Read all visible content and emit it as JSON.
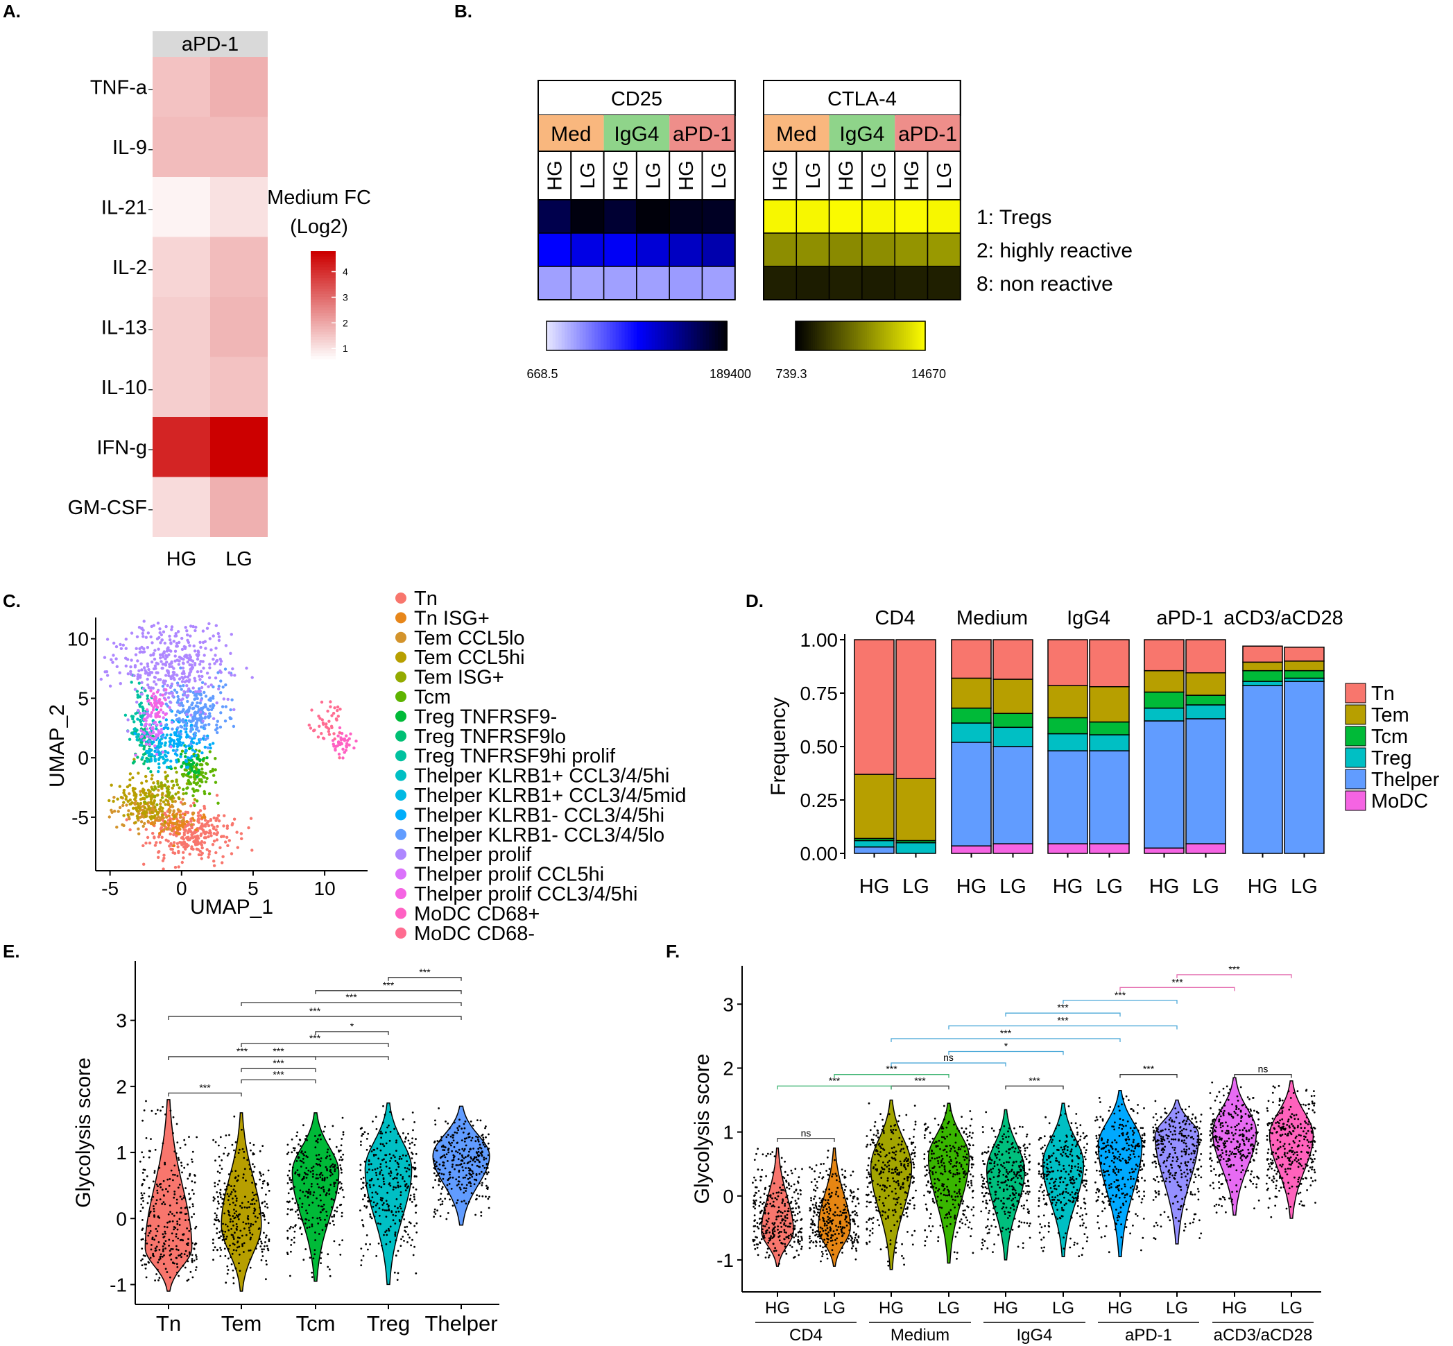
{
  "panel_labels": {
    "A": "A.",
    "B": "B.",
    "C": "C.",
    "D": "D.",
    "E": "E.",
    "F": "F."
  },
  "colors": {
    "Tn": "#F8766D",
    "Tem": "#B79F00",
    "Tcm": "#00BA38",
    "Treg": "#00BFC4",
    "Thelper": "#619CFF",
    "MoDC": "#F564E3",
    "sig_green": "#3CB371",
    "sig_blue": "#4AA8D8",
    "sig_pink": "#E36AAE",
    "heat_high": "#CC0000",
    "heat_low": "#FFFFFF",
    "strip": "#D9D9D9"
  },
  "chart_data": [
    {
      "id": "A",
      "type": "heatmap",
      "strip_label": "aPD-1",
      "rows": [
        "TNF-a",
        "IL-9",
        "IL-21",
        "IL-2",
        "IL-13",
        "IL-10",
        "IFN-g",
        "GM-CSF"
      ],
      "columns": [
        "HG",
        "LG"
      ],
      "values": [
        [
          1.6,
          1.9
        ],
        [
          1.7,
          1.7
        ],
        [
          0.8,
          1.1
        ],
        [
          1.3,
          1.7
        ],
        [
          1.4,
          1.8
        ],
        [
          1.4,
          1.6
        ],
        [
          4.2,
          4.8
        ],
        [
          1.2,
          1.9
        ]
      ],
      "legend_title": [
        "Medium FC",
        "(Log2)"
      ],
      "legend_ticks": [
        "4",
        "3",
        "2",
        "1"
      ],
      "legend_tick_values": [
        4,
        3,
        2,
        1
      ],
      "legend_range": [
        0.6,
        4.8
      ]
    },
    {
      "id": "B",
      "type": "heatmap",
      "groups": [
        {
          "marker": "CD25",
          "conditions": [
            "Med",
            "IgG4",
            "aPD-1"
          ],
          "columns": [
            "HG",
            "LG",
            "HG",
            "LG",
            "HG",
            "LG"
          ],
          "values": [
            [
              0.85,
              0.97,
              0.9,
              0.98,
              0.94,
              0.93
            ],
            [
              0.5,
              0.55,
              0.52,
              0.58,
              0.62,
              0.66
            ],
            [
              0.15,
              0.14,
              0.15,
              0.15,
              0.16,
              0.15
            ]
          ],
          "colorbar": [
            "668.5",
            "189400"
          ],
          "scale": "blue"
        },
        {
          "marker": "CTLA-4",
          "conditions": [
            "Med",
            "IgG4",
            "aPD-1"
          ],
          "columns": [
            "HG",
            "LG",
            "HG",
            "LG",
            "HG",
            "LG"
          ],
          "values": [
            [
              0.97,
              0.97,
              0.98,
              0.97,
              0.98,
              0.97
            ],
            [
              0.55,
              0.56,
              0.54,
              0.55,
              0.58,
              0.6
            ],
            [
              0.12,
              0.11,
              0.12,
              0.11,
              0.12,
              0.12
            ]
          ],
          "colorbar": [
            "739.3",
            "14670"
          ],
          "scale": "yellow"
        }
      ],
      "condition_colors": [
        "#F9B77E",
        "#8FD48A",
        "#EE8E8A"
      ],
      "row_labels": [
        "1: Tregs",
        "2: highly reactive",
        "8: non reactive"
      ]
    },
    {
      "id": "C",
      "type": "scatter",
      "xlabel": "UMAP_1",
      "ylabel": "UMAP_2",
      "xlim": [
        -6,
        13
      ],
      "ylim": [
        -9.5,
        11.5
      ],
      "xticks": [
        -5,
        0,
        5,
        10
      ],
      "yticks": [
        10,
        5,
        0,
        -5
      ],
      "clusters": [
        {
          "label": "Tn",
          "color": "#F8766D",
          "center": [
            0.5,
            -6.5
          ],
          "spread": [
            1.6,
            1.1
          ],
          "n": 300
        },
        {
          "label": "Tn ISG+",
          "color": "#E7861A",
          "center": [
            -0.5,
            -5.5
          ],
          "spread": [
            1.0,
            0.6
          ],
          "n": 60
        },
        {
          "label": "Tem CCL5lo",
          "color": "#D3932B",
          "center": [
            -2.0,
            -4.5
          ],
          "spread": [
            1.2,
            0.8
          ],
          "n": 120
        },
        {
          "label": "Tem CCL5hi",
          "color": "#B79F00",
          "center": [
            -2.3,
            -3.5
          ],
          "spread": [
            1.2,
            0.9
          ],
          "n": 140
        },
        {
          "label": "Tem ISG+",
          "color": "#93AA00",
          "center": [
            -1.0,
            -2.8
          ],
          "spread": [
            0.6,
            0.5
          ],
          "n": 40
        },
        {
          "label": "Tcm",
          "color": "#5EB300",
          "center": [
            1.0,
            -1.5
          ],
          "spread": [
            0.6,
            1.0
          ],
          "n": 100
        },
        {
          "label": "Treg TNFRSF9-",
          "color": "#00BA38",
          "center": [
            0.6,
            -0.5
          ],
          "spread": [
            0.5,
            0.7
          ],
          "n": 50
        },
        {
          "label": "Treg TNFRSF9lo",
          "color": "#00BF74",
          "center": [
            -2.6,
            1.0
          ],
          "spread": [
            0.4,
            1.0
          ],
          "n": 50
        },
        {
          "label": "Treg TNFRSF9hi prolif",
          "color": "#00C19F",
          "center": [
            -3.0,
            4.0
          ],
          "spread": [
            0.4,
            1.2
          ],
          "n": 50
        },
        {
          "label": "Thelper KLRB1+ CCL3/4/5hi",
          "color": "#00BFC4",
          "center": [
            -2.2,
            2.0
          ],
          "spread": [
            0.5,
            1.0
          ],
          "n": 50
        },
        {
          "label": "Thelper KLRB1+ CCL3/4/5mid",
          "color": "#00B9E3",
          "center": [
            -1.6,
            0.5
          ],
          "spread": [
            0.5,
            0.8
          ],
          "n": 50
        },
        {
          "label": "Thelper KLRB1- CCL3/4/5hi",
          "color": "#00ADFA",
          "center": [
            0.0,
            1.5
          ],
          "spread": [
            1.0,
            1.0
          ],
          "n": 120
        },
        {
          "label": "Thelper KLRB1- CCL3/4/5lo",
          "color": "#619CFF",
          "center": [
            1.0,
            4.0
          ],
          "spread": [
            1.1,
            1.4
          ],
          "n": 200
        },
        {
          "label": "Thelper prolif",
          "color": "#AE87FF",
          "center": [
            -0.5,
            8.0
          ],
          "spread": [
            2.0,
            1.8
          ],
          "n": 380
        },
        {
          "label": "Thelper prolif CCL5hi",
          "color": "#DB72FB",
          "center": [
            -2.0,
            2.5
          ],
          "spread": [
            0.5,
            0.9
          ],
          "n": 60
        },
        {
          "label": "Thelper prolif CCL3/4/5hi",
          "color": "#F564E3",
          "center": [
            -1.8,
            4.5
          ],
          "spread": [
            0.4,
            0.7
          ],
          "n": 40
        },
        {
          "label": "MoDC CD68+",
          "color": "#FF61C3",
          "center": [
            11.3,
            1.3
          ],
          "spread": [
            0.4,
            0.6
          ],
          "n": 40
        },
        {
          "label": "MoDC CD68-",
          "color": "#FF6C91",
          "center": [
            10.3,
            2.8
          ],
          "spread": [
            0.5,
            0.9
          ],
          "n": 40
        }
      ]
    },
    {
      "id": "D",
      "type": "bar",
      "stacked": true,
      "ylabel": "Frequency",
      "ylim": [
        0,
        1
      ],
      "yticks": [
        "1.00",
        "0.75",
        "0.50",
        "0.25",
        "0.00"
      ],
      "ytick_values": [
        1.0,
        0.75,
        0.5,
        0.25,
        0.0
      ],
      "facets": [
        "CD4",
        "Medium",
        "IgG4",
        "aPD-1",
        "aCD3/aCD28"
      ],
      "categories": [
        "HG",
        "LG"
      ],
      "series_order": [
        "MoDC",
        "Thelper",
        "Treg",
        "Tcm",
        "Tem",
        "Tn"
      ],
      "legend": [
        "Tn",
        "Tem",
        "Tcm",
        "Treg",
        "Thelper",
        "MoDC"
      ],
      "values": [
        [
          [
            0.0,
            0.03,
            0.03,
            0.01,
            0.3,
            0.63
          ],
          [
            0.0,
            0.0,
            0.05,
            0.01,
            0.29,
            0.65
          ]
        ],
        [
          [
            0.035,
            0.485,
            0.09,
            0.07,
            0.14,
            0.18
          ],
          [
            0.045,
            0.455,
            0.09,
            0.065,
            0.16,
            0.185
          ]
        ],
        [
          [
            0.045,
            0.435,
            0.08,
            0.075,
            0.15,
            0.215
          ],
          [
            0.045,
            0.435,
            0.075,
            0.06,
            0.165,
            0.22
          ]
        ],
        [
          [
            0.025,
            0.595,
            0.06,
            0.075,
            0.1,
            0.145
          ],
          [
            0.045,
            0.585,
            0.065,
            0.045,
            0.105,
            0.155
          ]
        ],
        [
          [
            0.0,
            0.785,
            0.02,
            0.05,
            0.04,
            0.075
          ],
          [
            0.0,
            0.805,
            0.015,
            0.035,
            0.045,
            0.065
          ]
        ]
      ]
    },
    {
      "id": "E",
      "type": "violin",
      "ylabel": "Glycolysis score",
      "ylim": [
        -1.3,
        3.9
      ],
      "yticks": [
        "3",
        "2",
        "1",
        "0",
        "-1"
      ],
      "ytick_values": [
        3,
        2,
        1,
        0,
        -1
      ],
      "categories": [
        "Tn",
        "Tem",
        "Tcm",
        "Treg",
        "Thelper"
      ],
      "distributions": [
        {
          "mode": -0.45,
          "min": -1.1,
          "max": 1.8,
          "width": 0.7,
          "skew": "up"
        },
        {
          "mode": -0.1,
          "min": -1.1,
          "max": 1.6,
          "width": 0.6,
          "skew": "up"
        },
        {
          "mode": 0.7,
          "min": -0.95,
          "max": 1.6,
          "width": 0.7,
          "skew": "none"
        },
        {
          "mode": 0.75,
          "min": -1.0,
          "max": 1.75,
          "width": 0.7,
          "skew": "none"
        },
        {
          "mode": 0.95,
          "min": -0.1,
          "max": 1.7,
          "width": 0.85,
          "skew": "none"
        }
      ],
      "brackets": [
        {
          "from": 0,
          "to": 1,
          "y": 1.9,
          "label": "***"
        },
        {
          "from": 1,
          "to": 2,
          "y": 2.27,
          "label": "***"
        },
        {
          "from": 1,
          "to": 2,
          "y": 2.1,
          "label": "***"
        },
        {
          "from": 0,
          "to": 2,
          "y": 2.45,
          "label": "***"
        },
        {
          "from": 1,
          "to": 3,
          "y": 2.65,
          "label": "***"
        },
        {
          "from": 0,
          "to": 3,
          "y": 2.45,
          "label": "***"
        },
        {
          "from": 2,
          "to": 3,
          "y": 2.83,
          "label": "*"
        },
        {
          "from": 0,
          "to": 4,
          "y": 3.06,
          "label": "***"
        },
        {
          "from": 1,
          "to": 4,
          "y": 3.27,
          "label": "***"
        },
        {
          "from": 2,
          "to": 4,
          "y": 3.45,
          "label": "***"
        },
        {
          "from": 3,
          "to": 4,
          "y": 3.65,
          "label": "***"
        }
      ]
    },
    {
      "id": "F",
      "type": "violin",
      "ylabel": "Glycolysis score",
      "ylim": [
        -1.5,
        3.6
      ],
      "yticks": [
        "3",
        "2",
        "1",
        "0",
        "-1"
      ],
      "ytick_values": [
        3,
        2,
        1,
        0,
        -1
      ],
      "categories": [
        "HG",
        "LG",
        "HG",
        "LG",
        "HG",
        "LG",
        "HG",
        "LG",
        "HG",
        "LG"
      ],
      "groups": [
        "CD4",
        "Medium",
        "IgG4",
        "aPD-1",
        "aCD3/aCD28"
      ],
      "fill_colors": [
        "#F8766D",
        "#E68613",
        "#A3A500",
        "#39B600",
        "#00BF7D",
        "#00BFC4",
        "#00A9FF",
        "#9590FF",
        "#E76BF3",
        "#FF62BC"
      ],
      "distributions": [
        {
          "mode": -0.55,
          "min": -1.1,
          "max": 0.75,
          "width": 0.55,
          "skew": "up"
        },
        {
          "mode": -0.5,
          "min": -1.1,
          "max": 0.75,
          "width": 0.55,
          "skew": "up"
        },
        {
          "mode": 0.45,
          "min": -1.15,
          "max": 1.5,
          "width": 0.7,
          "skew": "none"
        },
        {
          "mode": 0.6,
          "min": -1.05,
          "max": 1.45,
          "width": 0.7,
          "skew": "none"
        },
        {
          "mode": 0.4,
          "min": -1.0,
          "max": 1.35,
          "width": 0.65,
          "skew": "none"
        },
        {
          "mode": 0.5,
          "min": -0.95,
          "max": 1.45,
          "width": 0.7,
          "skew": "none"
        },
        {
          "mode": 0.8,
          "min": -0.95,
          "max": 1.65,
          "width": 0.75,
          "skew": "none"
        },
        {
          "mode": 0.95,
          "min": -0.75,
          "max": 1.5,
          "width": 0.75,
          "skew": "none"
        },
        {
          "mode": 1.0,
          "min": -0.3,
          "max": 1.85,
          "width": 0.75,
          "skew": "none"
        },
        {
          "mode": 0.95,
          "min": -0.35,
          "max": 1.8,
          "width": 0.75,
          "skew": "none"
        }
      ],
      "brackets": [
        {
          "from": 0,
          "to": 1,
          "y": 0.9,
          "label": "ns",
          "color": "#333333"
        },
        {
          "from": 2,
          "to": 3,
          "y": 1.72,
          "label": "***",
          "color": "#333333"
        },
        {
          "from": 4,
          "to": 5,
          "y": 1.72,
          "label": "***",
          "color": "#333333"
        },
        {
          "from": 6,
          "to": 7,
          "y": 1.9,
          "label": "***",
          "color": "#333333"
        },
        {
          "from": 8,
          "to": 9,
          "y": 1.9,
          "label": "ns",
          "color": "#333333"
        },
        {
          "from": 0,
          "to": 2,
          "y": 1.72,
          "label": "***",
          "color": "#3CB371"
        },
        {
          "from": 1,
          "to": 3,
          "y": 1.9,
          "label": "***",
          "color": "#3CB371"
        },
        {
          "from": 2,
          "to": 4,
          "y": 2.08,
          "label": "ns",
          "color": "#4AA8D8"
        },
        {
          "from": 3,
          "to": 5,
          "y": 2.26,
          "label": "*",
          "color": "#4AA8D8"
        },
        {
          "from": 2,
          "to": 6,
          "y": 2.46,
          "label": "***",
          "color": "#4AA8D8"
        },
        {
          "from": 3,
          "to": 7,
          "y": 2.66,
          "label": "***",
          "color": "#4AA8D8"
        },
        {
          "from": 4,
          "to": 6,
          "y": 2.86,
          "label": "***",
          "color": "#4AA8D8"
        },
        {
          "from": 5,
          "to": 7,
          "y": 3.06,
          "label": "***",
          "color": "#4AA8D8"
        },
        {
          "from": 6,
          "to": 8,
          "y": 3.26,
          "label": "***",
          "color": "#E36AAE"
        },
        {
          "from": 7,
          "to": 9,
          "y": 3.46,
          "label": "***",
          "color": "#E36AAE"
        }
      ]
    }
  ]
}
